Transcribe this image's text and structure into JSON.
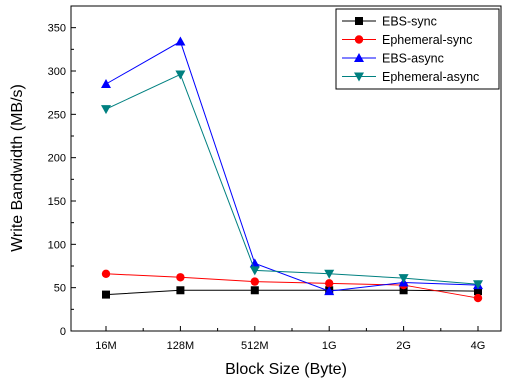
{
  "chart_data": {
    "type": "line",
    "categories": [
      "16M",
      "128M",
      "512M",
      "1G",
      "2G",
      "4G"
    ],
    "xlabel": "Block Size (Byte)",
    "ylabel": "Write Bandwidth (MB/s)",
    "ylim": [
      0,
      375
    ],
    "yticks": [
      0,
      50,
      100,
      150,
      200,
      250,
      300,
      350
    ],
    "legend_position": "top-right",
    "grid": false,
    "series": [
      {
        "name": "EBS-sync",
        "values": [
          42,
          47,
          47,
          47,
          47,
          46
        ],
        "color": "#000000",
        "marker": "square"
      },
      {
        "name": "Ephemeral-sync",
        "values": [
          66,
          62,
          57,
          55,
          53,
          38
        ],
        "color": "#ff0000",
        "marker": "circle"
      },
      {
        "name": "EBS-async",
        "values": [
          285,
          334,
          78,
          46,
          56,
          53
        ],
        "color": "#0000ff",
        "marker": "triangle-up"
      },
      {
        "name": "Ephemeral-async",
        "values": [
          256,
          296,
          70,
          66,
          61,
          54
        ],
        "color": "#008080",
        "marker": "triangle-down"
      }
    ]
  }
}
